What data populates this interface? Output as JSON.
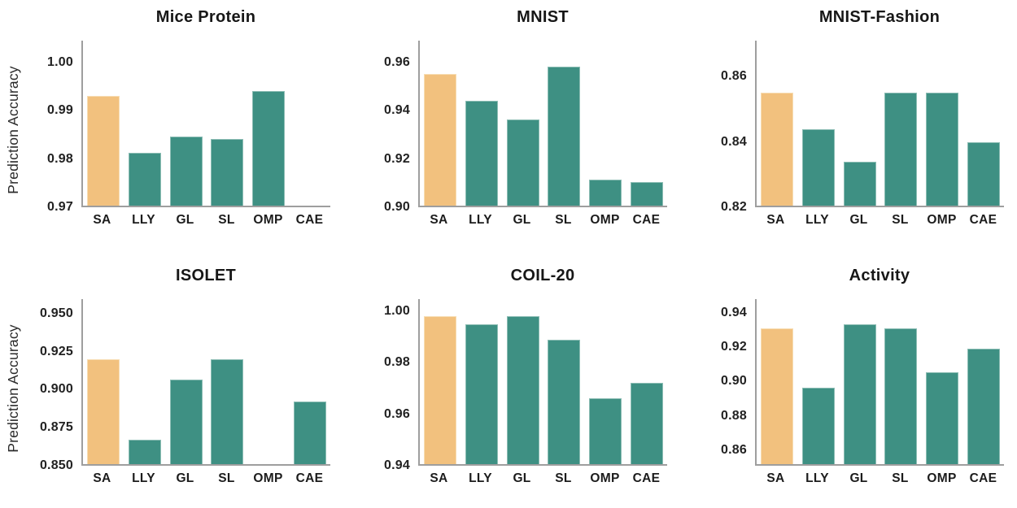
{
  "figure": {
    "background": "#ffffff",
    "rows": 2,
    "cols": 3
  },
  "colors": {
    "highlight_bar": "#F2C17E",
    "highlight_bar_edge": "#F7DDB3",
    "bar": "#3E9083",
    "bar_edge": "#8CBDB4",
    "axis": "#9E9E9E",
    "text": "#1E1E1E"
  },
  "shared": {
    "y_axis_title": "Prediction Accuracy",
    "x_categories": [
      "SA",
      "LLY",
      "GL",
      "SL",
      "OMP",
      "CAE"
    ]
  },
  "chart_data": [
    {
      "type": "bar",
      "title": "Mice Protein",
      "ylabel": "Prediction Accuracy",
      "categories": [
        "SA",
        "LLY",
        "GL",
        "SL",
        "OMP",
        "CAE"
      ],
      "values": [
        0.993,
        0.981,
        0.9845,
        0.984,
        0.994,
        null
      ],
      "highlight_index": 0,
      "ylim": [
        0.97,
        1.0045
      ],
      "ytick_values": [
        0.97,
        0.98,
        0.99,
        1.0
      ],
      "ytick_labels": [
        "0.97",
        "0.98",
        "0.99",
        "1.00"
      ],
      "grid": false,
      "legend": false
    },
    {
      "type": "bar",
      "title": "MNIST",
      "ylabel": "",
      "categories": [
        "SA",
        "LLY",
        "GL",
        "SL",
        "OMP",
        "CAE"
      ],
      "values": [
        0.955,
        0.944,
        0.936,
        0.958,
        0.911,
        0.91
      ],
      "highlight_index": 0,
      "ylim": [
        0.9,
        0.969
      ],
      "ytick_values": [
        0.9,
        0.92,
        0.94,
        0.96
      ],
      "ytick_labels": [
        "0.90",
        "0.92",
        "0.94",
        "0.96"
      ],
      "grid": false,
      "legend": false
    },
    {
      "type": "bar",
      "title": "MNIST-Fashion",
      "ylabel": "",
      "categories": [
        "SA",
        "LLY",
        "GL",
        "SL",
        "OMP",
        "CAE"
      ],
      "values": [
        0.855,
        0.8435,
        0.8335,
        0.855,
        0.855,
        0.8395
      ],
      "highlight_index": 0,
      "ylim": [
        0.82,
        0.871
      ],
      "ytick_values": [
        0.82,
        0.84,
        0.86
      ],
      "ytick_labels": [
        "0.82",
        "0.84",
        "0.86"
      ],
      "grid": false,
      "legend": false
    },
    {
      "type": "bar",
      "title": "ISOLET",
      "ylabel": "Prediction Accuracy",
      "categories": [
        "SA",
        "LLY",
        "GL",
        "SL",
        "OMP",
        "CAE"
      ],
      "values": [
        0.9195,
        0.866,
        0.906,
        0.9195,
        null,
        0.8915
      ],
      "highlight_index": 0,
      "ylim": [
        0.85,
        0.9595
      ],
      "ytick_values": [
        0.85,
        0.875,
        0.9,
        0.925,
        0.95
      ],
      "ytick_labels": [
        "0.850",
        "0.875",
        "0.900",
        "0.925",
        "0.950"
      ],
      "grid": false,
      "legend": false
    },
    {
      "type": "bar",
      "title": "COIL-20",
      "ylabel": "",
      "categories": [
        "SA",
        "LLY",
        "GL",
        "SL",
        "OMP",
        "CAE"
      ],
      "values": [
        0.998,
        0.995,
        0.998,
        0.989,
        0.966,
        0.972
      ],
      "highlight_index": 0,
      "ylim": [
        0.94,
        1.0048
      ],
      "ytick_values": [
        0.94,
        0.96,
        0.98,
        1.0
      ],
      "ytick_labels": [
        "0.94",
        "0.96",
        "0.98",
        "1.00"
      ],
      "grid": false,
      "legend": false
    },
    {
      "type": "bar",
      "title": "Activity",
      "ylabel": "",
      "categories": [
        "SA",
        "LLY",
        "GL",
        "SL",
        "OMP",
        "CAE"
      ],
      "values": [
        0.931,
        0.896,
        0.933,
        0.931,
        0.905,
        0.919
      ],
      "highlight_index": 0,
      "ylim": [
        0.851,
        0.948
      ],
      "ytick_values": [
        0.86,
        0.88,
        0.9,
        0.92,
        0.94
      ],
      "ytick_labels": [
        "0.86",
        "0.88",
        "0.90",
        "0.92",
        "0.94"
      ],
      "grid": false,
      "legend": false
    }
  ]
}
